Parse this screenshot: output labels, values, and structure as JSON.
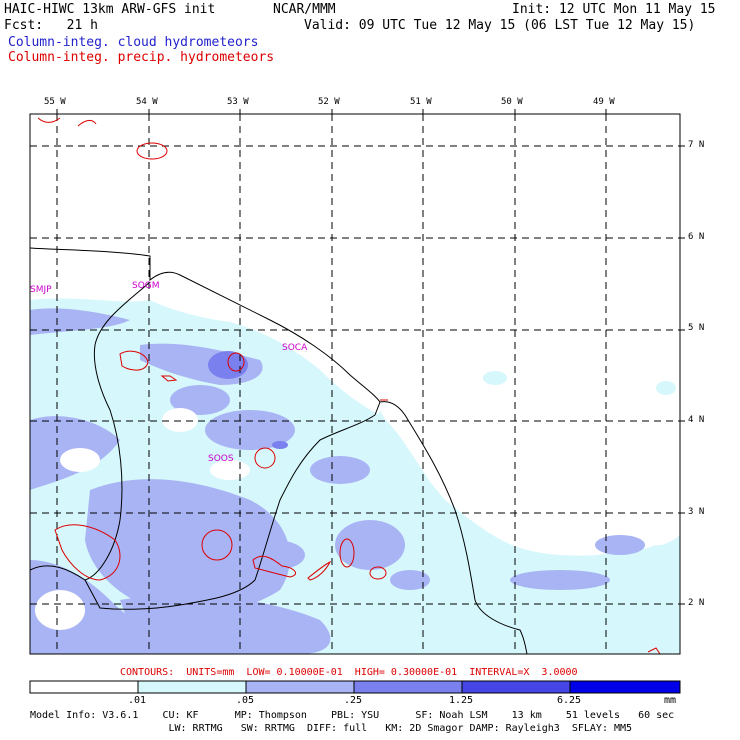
{
  "header": {
    "model_title": "HAIC-HIWC 13km ARW-GFS init",
    "org": "NCAR/MMM",
    "init": "Init: 12 UTC Mon 11 May 15",
    "fcst": "Fcst:   21 h",
    "valid": "Valid: 09 UTC Tue 12 May 15 (06 LST Tue 12 May 15)",
    "field1": "Column-integ. cloud hydrometeors",
    "field2": "Column-integ. precip. hydrometeors"
  },
  "colors": {
    "field1": "#2222cc",
    "field2": "#dd0000",
    "contour": "#dd0000",
    "station": "#cc00cc",
    "shade_1": "#d6f7fb",
    "shade_2": "#a9b4f4",
    "shade_3": "#7a80ee",
    "shade_4": "#4646e6",
    "shade_5": "#0000e8"
  },
  "map": {
    "lon_labels": [
      "55 W",
      "54 W",
      "53 W",
      "52 W",
      "51 W",
      "50 W",
      "49 W"
    ],
    "lat_labels": [
      "7 N",
      "6 N",
      "5 N",
      "4 N",
      "3 N",
      "2 N"
    ],
    "stations": [
      "SMJP",
      "SOGM",
      "SOCA",
      "SOOS"
    ]
  },
  "contour_info": "CONTOURS:  UNITS=mm  LOW= 0.10000E-01  HIGH= 0.30000E-01  INTERVAL=X  3.0000",
  "colorbar": {
    "labels": [
      ".01",
      ".05",
      ".25",
      "1.25",
      "6.25"
    ],
    "unit": "mm"
  },
  "footer": {
    "line1": "Model Info: V3.6.1    CU: KF      MP: Thompson    PBL: YSU      SF: Noah LSM    13 km    51 levels   60 sec",
    "line2": "                       LW: RRTMG   SW: RRTMG  DIFF: full   KM: 2D Smagor DAMP: Rayleigh3  SFLAY: MM5"
  }
}
